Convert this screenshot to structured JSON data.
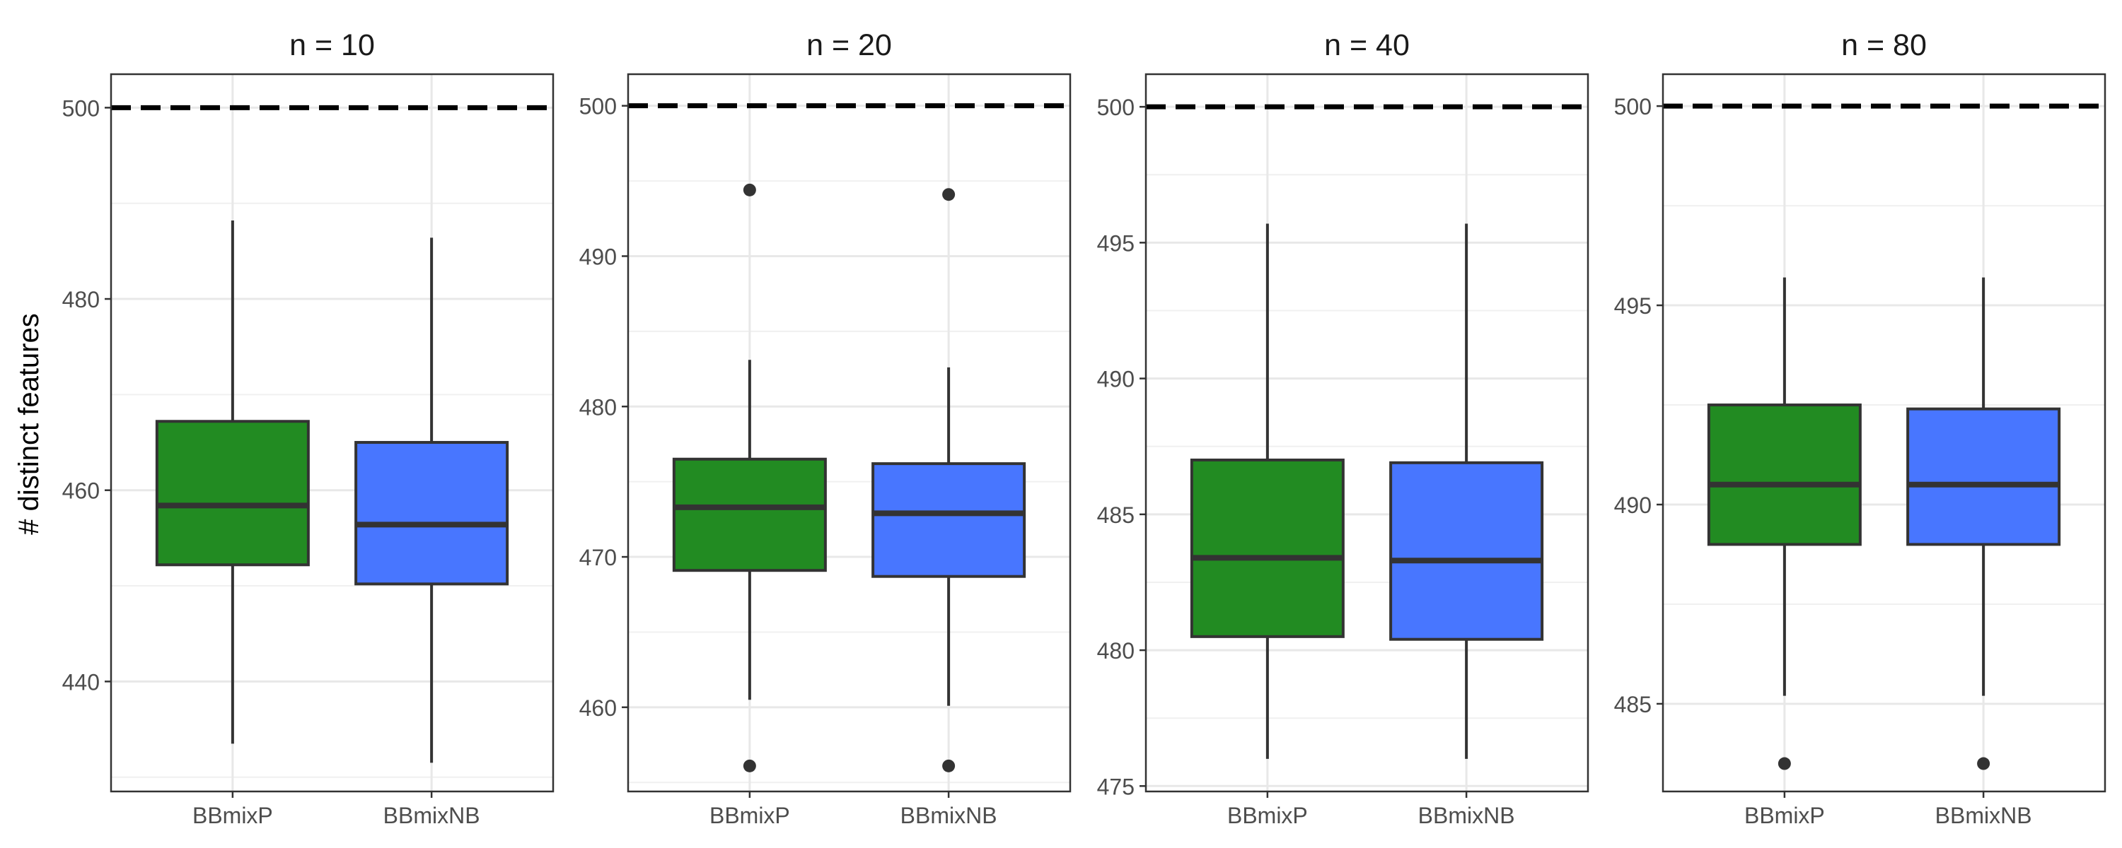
{
  "figure": {
    "ylabel": "# distinct features"
  },
  "colors": {
    "BBmixP": "#228B22",
    "BBmixNB": "#4876FF",
    "reference_line": "#000000",
    "box_outline": "#333333"
  },
  "chart_data": [
    {
      "type": "box",
      "title": "n =  10",
      "categories": [
        "BBmixP",
        "BBmixNB"
      ],
      "yticks": [
        440,
        460,
        480,
        500
      ],
      "ylim": [
        428.5,
        503.5
      ],
      "reference_line": 500,
      "boxes": [
        {
          "name": "BBmixP",
          "min": 433.5,
          "q1": 452.2,
          "median": 458.4,
          "q3": 467.2,
          "max": 488.2,
          "outliers": []
        },
        {
          "name": "BBmixNB",
          "min": 431.5,
          "q1": 450.2,
          "median": 456.4,
          "q3": 465.0,
          "max": 486.4,
          "outliers": []
        }
      ]
    },
    {
      "type": "box",
      "title": "n =  20",
      "categories": [
        "BBmixP",
        "BBmixNB"
      ],
      "yticks": [
        460,
        470,
        480,
        490,
        500
      ],
      "ylim": [
        454.4,
        502.1
      ],
      "reference_line": 500,
      "boxes": [
        {
          "name": "BBmixP",
          "min": 460.5,
          "q1": 469.1,
          "median": 473.3,
          "q3": 476.5,
          "max": 483.1,
          "outliers": [
            494.4,
            456.1
          ]
        },
        {
          "name": "BBmixNB",
          "min": 460.1,
          "q1": 468.7,
          "median": 472.9,
          "q3": 476.2,
          "max": 482.6,
          "outliers": [
            494.1,
            456.1
          ]
        }
      ]
    },
    {
      "type": "box",
      "title": "n =  40",
      "categories": [
        "BBmixP",
        "BBmixNB"
      ],
      "yticks": [
        475,
        480,
        485,
        490,
        495,
        500
      ],
      "ylim": [
        474.8,
        501.2
      ],
      "reference_line": 500,
      "boxes": [
        {
          "name": "BBmixP",
          "min": 476.0,
          "q1": 480.5,
          "median": 483.4,
          "q3": 487.0,
          "max": 495.7,
          "outliers": []
        },
        {
          "name": "BBmixNB",
          "min": 476.0,
          "q1": 480.4,
          "median": 483.3,
          "q3": 486.9,
          "max": 495.7,
          "outliers": []
        }
      ]
    },
    {
      "type": "box",
      "title": "n =  80",
      "categories": [
        "BBmixP",
        "BBmixNB"
      ],
      "yticks": [
        485,
        490,
        495,
        500
      ],
      "ylim": [
        482.8,
        500.8
      ],
      "reference_line": 500,
      "boxes": [
        {
          "name": "BBmixP",
          "min": 485.2,
          "q1": 489.0,
          "median": 490.5,
          "q3": 492.5,
          "max": 495.7,
          "outliers": [
            483.5
          ]
        },
        {
          "name": "BBmixNB",
          "min": 485.2,
          "q1": 489.0,
          "median": 490.5,
          "q3": 492.4,
          "max": 495.7,
          "outliers": [
            483.5
          ]
        }
      ]
    }
  ]
}
